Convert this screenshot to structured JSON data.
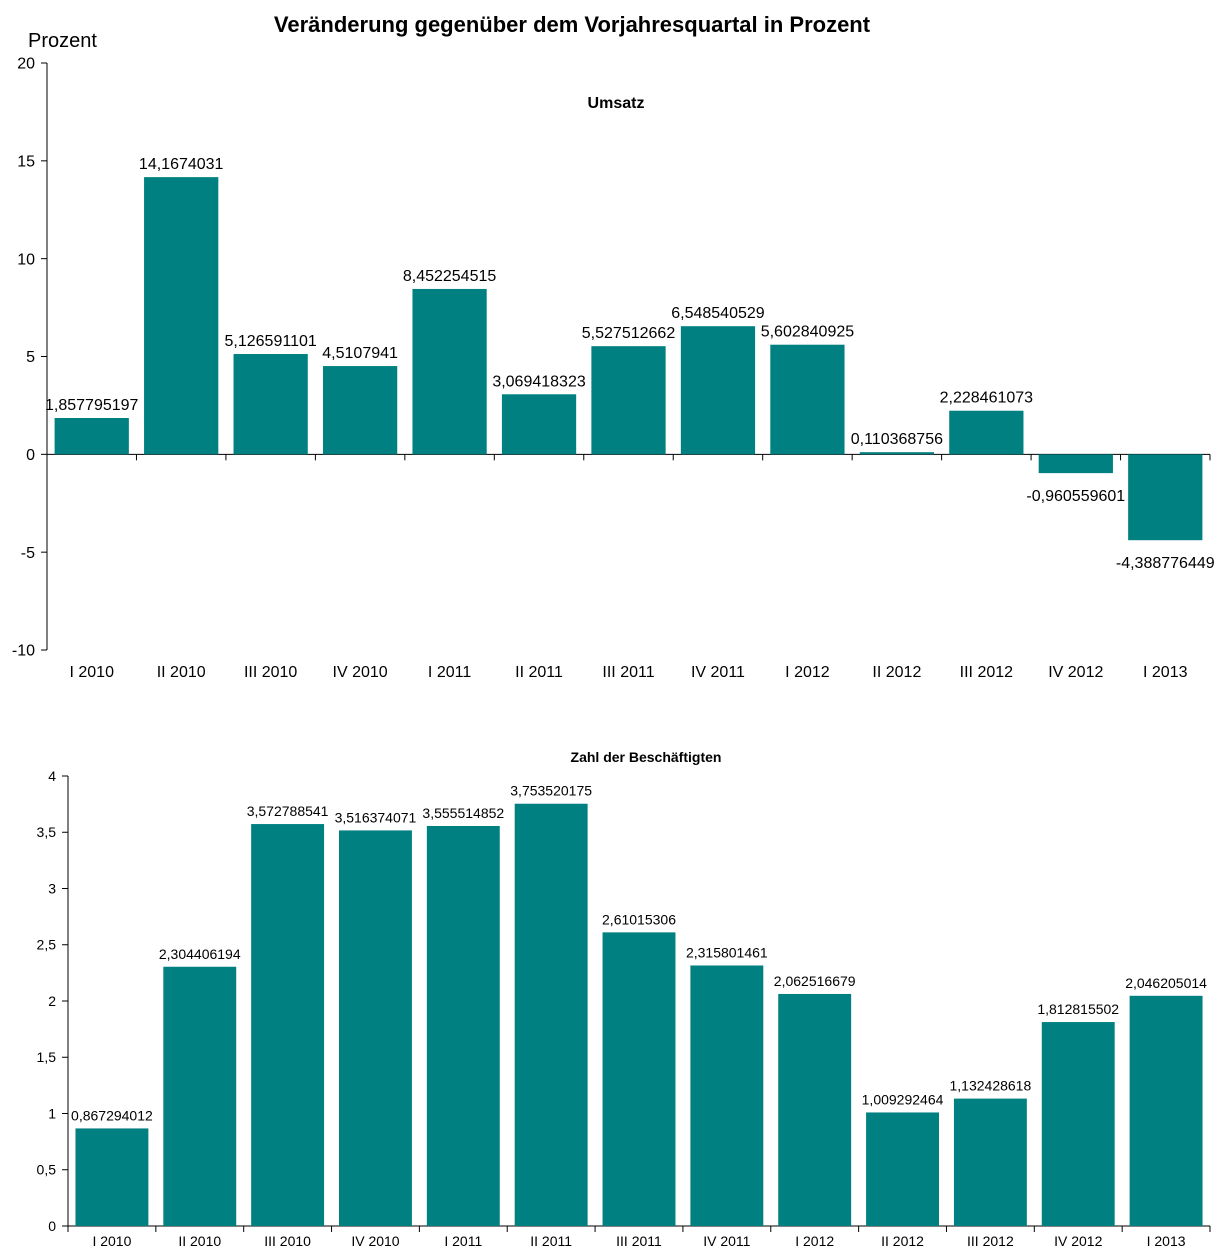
{
  "title": "Veränderung gegenüber dem Vorjahresquartal in Prozent",
  "y_unit": "Prozent",
  "colors": {
    "bar": "#008080"
  },
  "chart_data": [
    {
      "type": "bar",
      "title": "Umsatz",
      "ylabel": "Prozent",
      "ylim": [
        -10,
        20
      ],
      "yticks": [
        "20",
        "15",
        "10",
        "5",
        "0",
        "-5",
        "-10"
      ],
      "ytick_values": [
        20,
        15,
        10,
        5,
        0,
        -5,
        -10
      ],
      "categories": [
        "I 2010",
        "II 2010",
        "III 2010",
        "IV 2010",
        "I 2011",
        "II 2011",
        "III 2011",
        "IV 2011",
        "I 2012",
        "II 2012",
        "III 2012",
        "IV 2012",
        "I 2013"
      ],
      "values": [
        1.857795197,
        14.1674031,
        5.126591101,
        4.5107941,
        8.452254515,
        3.069418323,
        5.527512662,
        6.548540529,
        5.602840925,
        0.110368756,
        2.228461073,
        -0.960559601,
        -4.388776449
      ],
      "data_labels": [
        "1,857795197",
        "14,1674031",
        "5,126591101",
        "4,5107941",
        "8,452254515",
        "3,069418323",
        "5,527512662",
        "6,548540529",
        "5,602840925",
        "0,110368756",
        "2,228461073",
        "-0,960559601",
        "-4,388776449"
      ],
      "grid": false,
      "legend": "none"
    },
    {
      "type": "bar",
      "title": "Zahl der Beschäftigten",
      "ylim": [
        0,
        4
      ],
      "yticks": [
        "4",
        "3,5",
        "3",
        "2,5",
        "2",
        "1,5",
        "1",
        "0,5",
        "0"
      ],
      "ytick_values": [
        4,
        3.5,
        3,
        2.5,
        2,
        1.5,
        1,
        0.5,
        0
      ],
      "categories": [
        "I 2010",
        "II 2010",
        "III 2010",
        "IV 2010",
        "I 2011",
        "II 2011",
        "III 2011",
        "IV 2011",
        "I 2012",
        "II 2012",
        "III 2012",
        "IV 2012",
        "I 2013"
      ],
      "values": [
        0.867294012,
        2.304406194,
        3.572788541,
        3.516374071,
        3.555514852,
        3.753520175,
        2.61015306,
        2.315801461,
        2.062516679,
        1.009292464,
        1.132428618,
        1.812815502,
        2.046205014
      ],
      "data_labels": [
        "0,867294012",
        "2,304406194",
        "3,572788541",
        "3,516374071",
        "3,555514852",
        "3,753520175",
        "2,61015306",
        "2,315801461",
        "2,062516679",
        "1,009292464",
        "1,132428618",
        "1,812815502",
        "2,046205014"
      ],
      "grid": false,
      "legend": "none"
    }
  ]
}
